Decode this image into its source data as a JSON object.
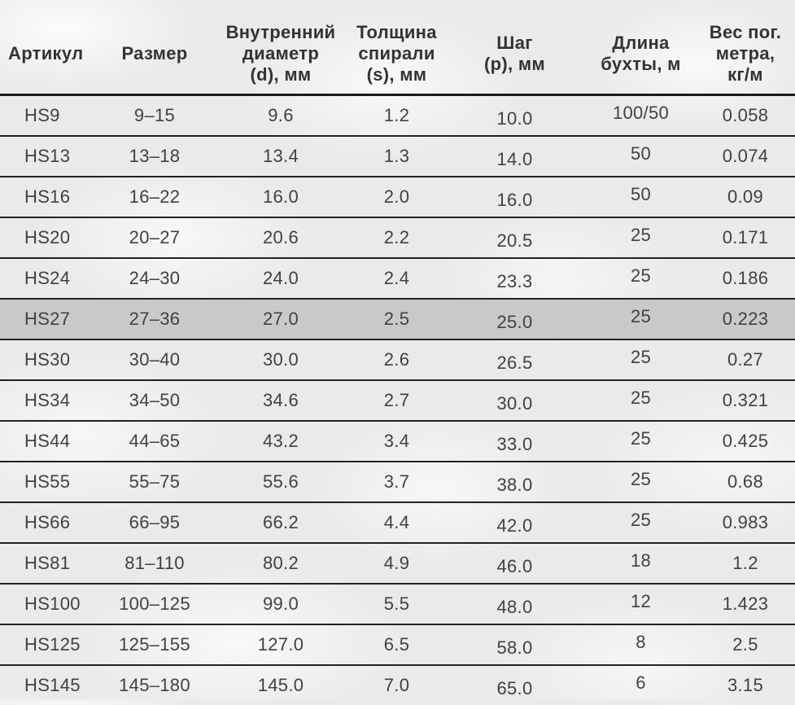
{
  "colors": {
    "background": "#e9eaec",
    "text": "#3c3c3e",
    "border": "#1b1b1d",
    "row_highlight": "#c8c9cb"
  },
  "table": {
    "headers": [
      {
        "id": "article",
        "label": "Артикул"
      },
      {
        "id": "size",
        "label": "Размер"
      },
      {
        "id": "inner-diameter",
        "label": "Внутренний\nдиаметр\n(d), мм"
      },
      {
        "id": "spiral-thickness",
        "label": "Толщина\nспирали\n(s), мм"
      },
      {
        "id": "pitch",
        "label": "Шаг\n(p), мм"
      },
      {
        "id": "coil-length",
        "label": "Длина\nбухты, м"
      },
      {
        "id": "weight-per-meter",
        "label": "Вес пог.\nметра,\nкг/м"
      }
    ],
    "highlighted_row_index": 5,
    "rows": [
      [
        "HS9",
        "9–15",
        "9.6",
        "1.2",
        "10.0",
        "100/50",
        "0.058"
      ],
      [
        "HS13",
        "13–18",
        "13.4",
        "1.3",
        "14.0",
        "50",
        "0.074"
      ],
      [
        "HS16",
        "16–22",
        "16.0",
        "2.0",
        "16.0",
        "50",
        "0.09"
      ],
      [
        "HS20",
        "20–27",
        "20.6",
        "2.2",
        "20.5",
        "25",
        "0.171"
      ],
      [
        "HS24",
        "24–30",
        "24.0",
        "2.4",
        "23.3",
        "25",
        "0.186"
      ],
      [
        "HS27",
        "27–36",
        "27.0",
        "2.5",
        "25.0",
        "25",
        "0.223"
      ],
      [
        "HS30",
        "30–40",
        "30.0",
        "2.6",
        "26.5",
        "25",
        "0.27"
      ],
      [
        "HS34",
        "34–50",
        "34.6",
        "2.7",
        "30.0",
        "25",
        "0.321"
      ],
      [
        "HS44",
        "44–65",
        "43.2",
        "3.4",
        "33.0",
        "25",
        "0.425"
      ],
      [
        "HS55",
        "55–75",
        "55.6",
        "3.7",
        "38.0",
        "25",
        "0.68"
      ],
      [
        "HS66",
        "66–95",
        "66.2",
        "4.4",
        "42.0",
        "25",
        "0.983"
      ],
      [
        "HS81",
        "81–110",
        "80.2",
        "4.9",
        "46.0",
        "18",
        "1.2"
      ],
      [
        "HS100",
        "100–125",
        "99.0",
        "5.5",
        "48.0",
        "12",
        "1.423"
      ],
      [
        "HS125",
        "125–155",
        "127.0",
        "6.5",
        "58.0",
        "8",
        "2.5"
      ],
      [
        "HS145",
        "145–180",
        "145.0",
        "7.0",
        "65.0",
        "6",
        "3.15"
      ]
    ]
  }
}
